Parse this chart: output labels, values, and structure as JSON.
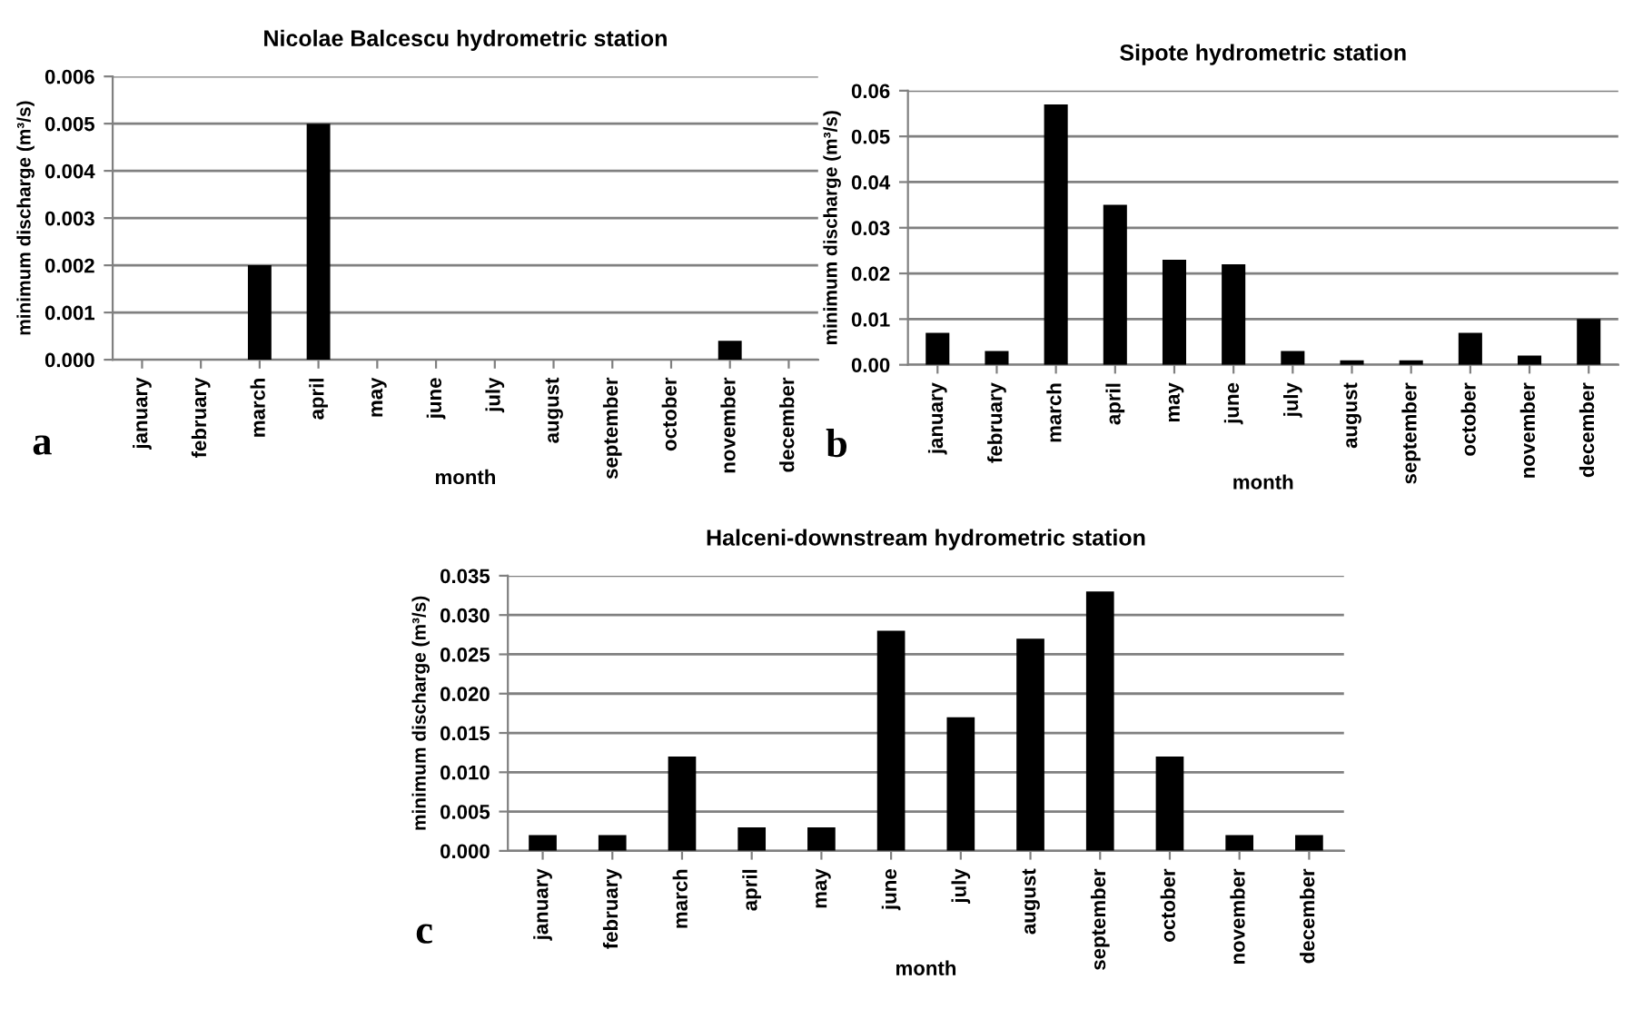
{
  "chart_data": [
    {
      "type": "bar",
      "title": "Nicolae Balcescu hydrometric station",
      "xlabel": "month",
      "ylabel": "minimum discharge (m³/s)",
      "categories": [
        "january",
        "february",
        "march",
        "april",
        "may",
        "june",
        "july",
        "august",
        "september",
        "october",
        "november",
        "december"
      ],
      "values": [
        0,
        0,
        0.002,
        0.005,
        0,
        0,
        0,
        0,
        0,
        0,
        0.0004,
        0
      ],
      "color": "#000000",
      "ylim": [
        0,
        0.006
      ],
      "yticks": [
        {
          "value": 0,
          "label": "0.000"
        },
        {
          "value": 0.001,
          "label": "0.001"
        },
        {
          "value": 0.002,
          "label": "0.002"
        },
        {
          "value": 0.003,
          "label": "0.003"
        },
        {
          "value": 0.004,
          "label": "0.004"
        },
        {
          "value": 0.005,
          "label": "0.005"
        },
        {
          "value": 0.006,
          "label": "0.006"
        }
      ],
      "grid": "y",
      "annotations": [
        "a"
      ]
    },
    {
      "type": "bar",
      "title": "Sipote hydrometric station",
      "xlabel": "month",
      "ylabel": "minimum discharge (m³/s)",
      "categories": [
        "january",
        "february",
        "march",
        "april",
        "may",
        "june",
        "july",
        "august",
        "september",
        "october",
        "november",
        "december"
      ],
      "values": [
        0.007,
        0.003,
        0.057,
        0.035,
        0.023,
        0.022,
        0.003,
        0.001,
        0.001,
        0.007,
        0.002,
        0.01
      ],
      "color": "#000000",
      "ylim": [
        0,
        0.06
      ],
      "yticks": [
        {
          "value": 0,
          "label": "0.00"
        },
        {
          "value": 0.01,
          "label": "0.01"
        },
        {
          "value": 0.02,
          "label": "0.02"
        },
        {
          "value": 0.03,
          "label": "0.03"
        },
        {
          "value": 0.04,
          "label": "0.04"
        },
        {
          "value": 0.05,
          "label": "0.05"
        },
        {
          "value": 0.06,
          "label": "0.06"
        }
      ],
      "grid": "y",
      "annotations": [
        "b"
      ]
    },
    {
      "type": "bar",
      "title": "Halceni-downstream hydrometric station",
      "xlabel": "month",
      "ylabel": "minimum discharge (m³/s)",
      "categories": [
        "january",
        "february",
        "march",
        "april",
        "may",
        "june",
        "july",
        "august",
        "september",
        "october",
        "november",
        "december"
      ],
      "values": [
        0.002,
        0.002,
        0.012,
        0.003,
        0.003,
        0.028,
        0.017,
        0.027,
        0.033,
        0.012,
        0.002,
        0.002
      ],
      "color": "#000000",
      "ylim": [
        0,
        0.035
      ],
      "yticks": [
        {
          "value": 0,
          "label": "0.000"
        },
        {
          "value": 0.005,
          "label": "0.005"
        },
        {
          "value": 0.01,
          "label": "0.010"
        },
        {
          "value": 0.015,
          "label": "0.015"
        },
        {
          "value": 0.02,
          "label": "0.020"
        },
        {
          "value": 0.025,
          "label": "0.025"
        },
        {
          "value": 0.03,
          "label": "0.030"
        },
        {
          "value": 0.035,
          "label": "0.035"
        }
      ],
      "grid": "y",
      "annotations": [
        "c"
      ]
    }
  ]
}
